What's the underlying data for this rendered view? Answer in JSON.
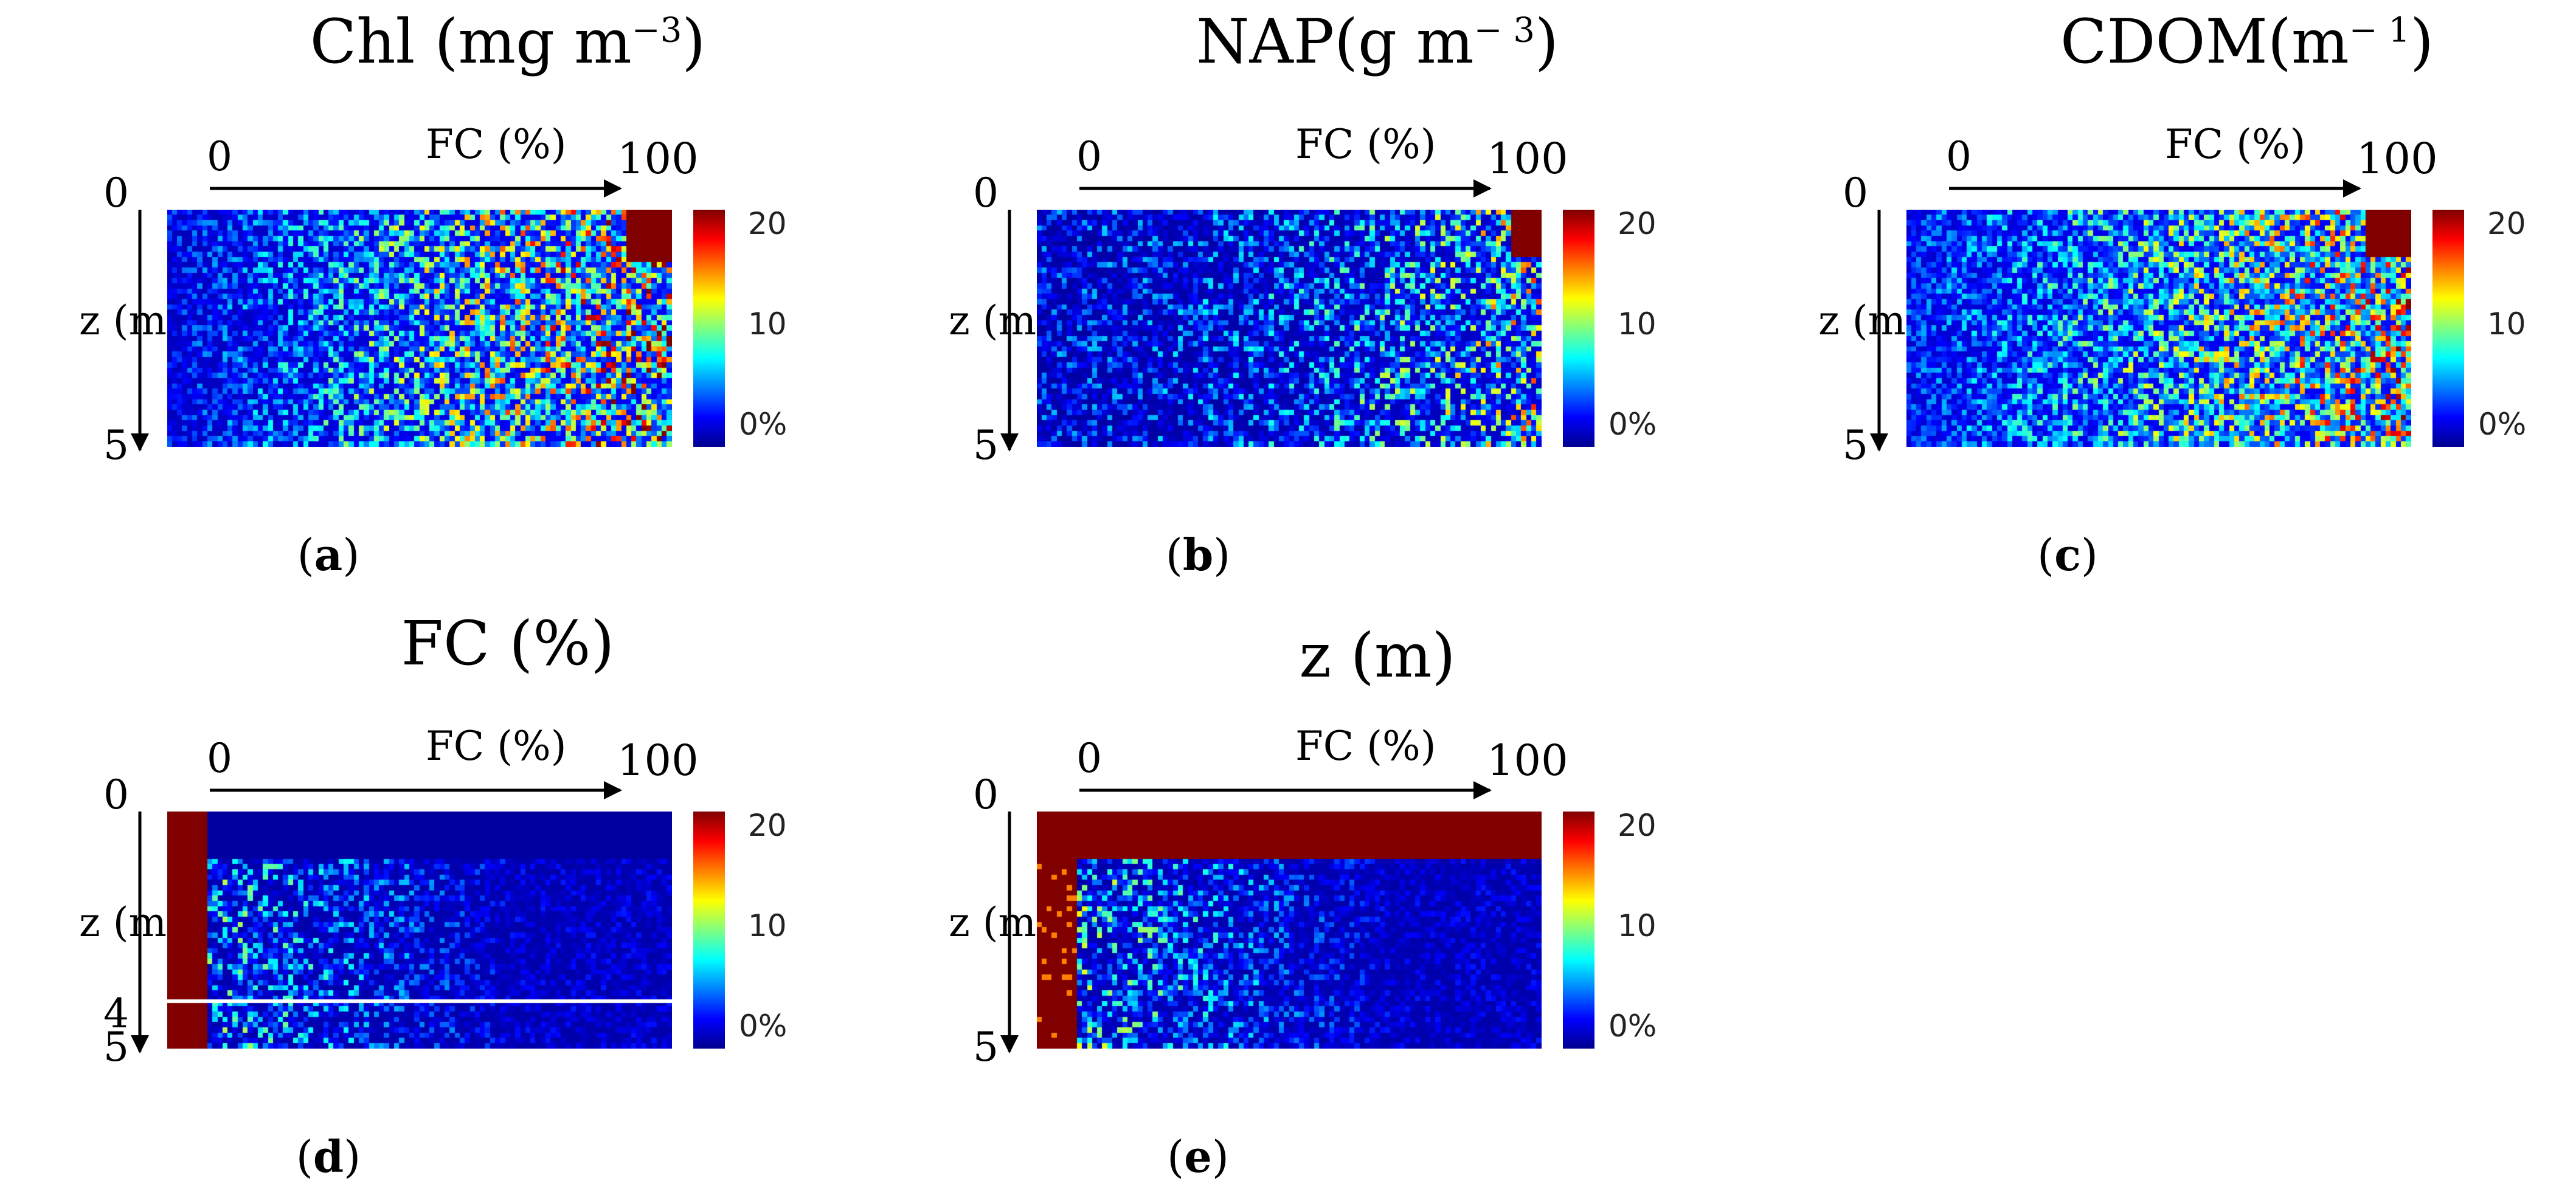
{
  "figure": {
    "axis": {
      "x_label": "FC (%)",
      "x_start": "0",
      "x_end": "100",
      "y_label": "z (m)",
      "y_start": "0",
      "y_end": "5"
    },
    "colorbar": {
      "colors": [
        "#00008f",
        "#0000ff",
        "#0080ff",
        "#00ffff",
        "#80ff80",
        "#ffff00",
        "#ff8000",
        "#ff0000",
        "#800000"
      ],
      "ticks": [
        "20",
        "10",
        "0%"
      ]
    }
  },
  "chart_data": [
    {
      "type": "heatmap",
      "panel_label": "a",
      "title_main": "Chl (mg m",
      "title_sup": "−3",
      "title_end": ")",
      "x": "FC (%)",
      "xlim": [
        0,
        100
      ],
      "y": "z (m)",
      "ylim": [
        0,
        5
      ],
      "value_range": [
        0,
        20
      ],
      "value_unit": "%",
      "pattern": "noisy; values increase with FC; saturated block at FC > 90%, z < 1 m",
      "grid": [
        100,
        45
      ]
    },
    {
      "type": "heatmap",
      "panel_label": "b",
      "title_main": "NAP(g m",
      "title_sup": "− 3",
      "title_end": ")",
      "x": "FC (%)",
      "xlim": [
        0,
        100
      ],
      "y": "z (m)",
      "ylim": [
        0,
        5
      ],
      "value_range": [
        0,
        20
      ],
      "value_unit": "%",
      "pattern": "mostly low values; slight rise at high FC; saturated corner at FC > 93%, z < 1 m",
      "grid": [
        100,
        45
      ]
    },
    {
      "type": "heatmap",
      "panel_label": "c",
      "title_main": "CDOM(m",
      "title_sup": "− 1",
      "title_end": ")",
      "x": "FC (%)",
      "xlim": [
        0,
        100
      ],
      "y": "z (m)",
      "ylim": [
        0,
        5
      ],
      "value_range": [
        0,
        20
      ],
      "value_unit": "%",
      "pattern": "moderate noisy values increasing with FC; saturated block at FC > 90%, z < 1 m",
      "grid": [
        100,
        45
      ]
    },
    {
      "type": "heatmap",
      "panel_label": "d",
      "title_main": "FC (%)",
      "title_sup": "",
      "title_end": "",
      "x": "FC (%)",
      "xlim": [
        0,
        100
      ],
      "y": "z (m)",
      "ylim": [
        0,
        5
      ],
      "y_extra_tick": "4",
      "value_range": [
        0,
        20
      ],
      "value_unit": "%",
      "pattern": "saturated at FC < 8%; low values elsewhere decaying with FC; white line at z = 4 m",
      "grid": [
        100,
        45
      ]
    },
    {
      "type": "heatmap",
      "panel_label": "e",
      "title_main": "z (m)",
      "title_sup": "",
      "title_end": "",
      "x": "FC (%)",
      "xlim": [
        0,
        100
      ],
      "y": "z (m)",
      "ylim": [
        0,
        5
      ],
      "value_range": [
        0,
        20
      ],
      "value_unit": "%",
      "pattern": "saturated at z < 1 m and at FC < 8%; low values elsewhere decaying with FC",
      "grid": [
        100,
        45
      ]
    }
  ]
}
